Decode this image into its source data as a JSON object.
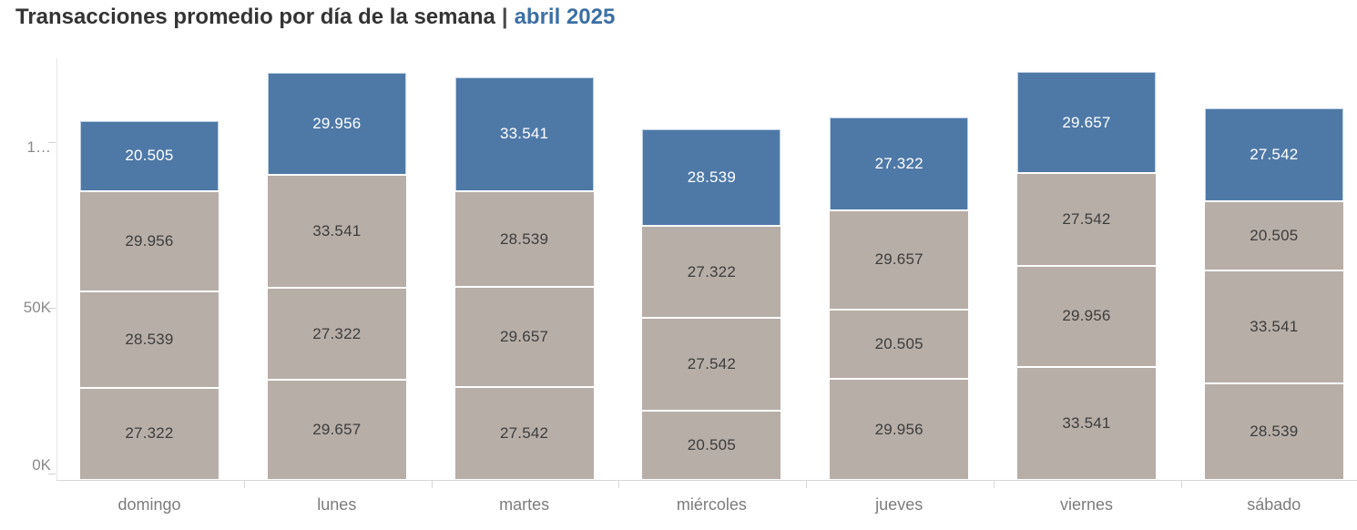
{
  "title": {
    "main": "Transacciones promedio por día de la semana",
    "separator": "|",
    "period": "abril 2025"
  },
  "colors": {
    "bar_blue": "#4e79a7",
    "bar_gray": "#b7aea7",
    "title_text": "#343434",
    "title_accent": "#3c6fa5",
    "axis_text": "#8a8a8a",
    "day_label_text": "#7c7c7c"
  },
  "y_axis": {
    "tick_labels_top_to_bottom": [
      "1…",
      "50K",
      "0K"
    ]
  },
  "chart_data": {
    "type": "bar",
    "stacked": true,
    "title": "Transacciones promedio por día de la semana | abril 2025",
    "xlabel": "",
    "ylabel": "",
    "categories": [
      "domingo",
      "lunes",
      "martes",
      "miércoles",
      "jueves",
      "viernes",
      "sábado"
    ],
    "y_axis": {
      "tick_values": [
        0,
        50000,
        100000
      ],
      "tick_labels": [
        "0K",
        "50K",
        "1…"
      ],
      "ylim": [
        0,
        125000
      ],
      "grid": false
    },
    "legend": "none",
    "segment_order": "top_to_bottom",
    "bars": [
      {
        "category": "domingo",
        "segments": [
          {
            "label": "20.505",
            "value": 20505,
            "color": "blue"
          },
          {
            "label": "29.956",
            "value": 29956,
            "color": "gray"
          },
          {
            "label": "28.539",
            "value": 28539,
            "color": "gray"
          },
          {
            "label": "27.322",
            "value": 27322,
            "color": "gray"
          }
        ]
      },
      {
        "category": "lunes",
        "segments": [
          {
            "label": "29.956",
            "value": 29956,
            "color": "blue"
          },
          {
            "label": "33.541",
            "value": 33541,
            "color": "gray"
          },
          {
            "label": "27.322",
            "value": 27322,
            "color": "gray"
          },
          {
            "label": "29.657",
            "value": 29657,
            "color": "gray"
          }
        ]
      },
      {
        "category": "martes",
        "segments": [
          {
            "label": "33.541",
            "value": 33541,
            "color": "blue"
          },
          {
            "label": "28.539",
            "value": 28539,
            "color": "gray"
          },
          {
            "label": "29.657",
            "value": 29657,
            "color": "gray"
          },
          {
            "label": "27.542",
            "value": 27542,
            "color": "gray"
          }
        ]
      },
      {
        "category": "miércoles",
        "segments": [
          {
            "label": "28.539",
            "value": 28539,
            "color": "blue"
          },
          {
            "label": "27.322",
            "value": 27322,
            "color": "gray"
          },
          {
            "label": "27.542",
            "value": 27542,
            "color": "gray"
          },
          {
            "label": "20.505",
            "value": 20505,
            "color": "gray"
          }
        ]
      },
      {
        "category": "jueves",
        "segments": [
          {
            "label": "27.322",
            "value": 27322,
            "color": "blue"
          },
          {
            "label": "29.657",
            "value": 29657,
            "color": "gray"
          },
          {
            "label": "20.505",
            "value": 20505,
            "color": "gray"
          },
          {
            "label": "29.956",
            "value": 29956,
            "color": "gray"
          }
        ]
      },
      {
        "category": "viernes",
        "segments": [
          {
            "label": "29.657",
            "value": 29657,
            "color": "blue"
          },
          {
            "label": "27.542",
            "value": 27542,
            "color": "gray"
          },
          {
            "label": "29.956",
            "value": 29956,
            "color": "gray"
          },
          {
            "label": "33.541",
            "value": 33541,
            "color": "gray"
          }
        ]
      },
      {
        "category": "sábado",
        "segments": [
          {
            "label": "27.542",
            "value": 27542,
            "color": "blue"
          },
          {
            "label": "20.505",
            "value": 20505,
            "color": "gray"
          },
          {
            "label": "33.541",
            "value": 33541,
            "color": "gray"
          },
          {
            "label": "28.539",
            "value": 28539,
            "color": "gray"
          }
        ]
      }
    ]
  }
}
